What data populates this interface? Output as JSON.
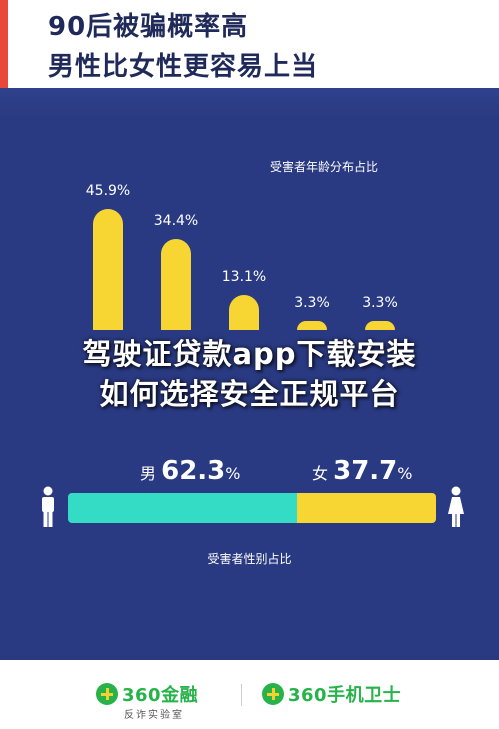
{
  "header": {
    "title_line1": "90后被骗概率高",
    "title_line2": "男性比女性更容易上当"
  },
  "overlay": {
    "line1": "驾驶证贷款app下载安装",
    "line2": "如何选择安全正规平台"
  },
  "chart_data": [
    {
      "type": "bar",
      "title": "受害者年龄分布占比",
      "categories": [
        "",
        "",
        "",
        "",
        ""
      ],
      "values": [
        45.9,
        34.4,
        13.1,
        3.3,
        3.3
      ],
      "value_labels": [
        "45.9%",
        "34.4%",
        "13.1%",
        "3.3%",
        "3.3%"
      ],
      "ylim": [
        0,
        50
      ],
      "grid": false,
      "colors": {
        "bar": "#f7d633"
      }
    },
    {
      "type": "bar",
      "orientation": "horizontal-stacked",
      "title": "受害者性别占比",
      "series": [
        {
          "name": "男",
          "value": 62.3,
          "label": "62.3",
          "color": "#34dcc6"
        },
        {
          "name": "女",
          "value": 37.7,
          "label": "37.7",
          "color": "#f7d633"
        }
      ],
      "unit": "%"
    }
  ],
  "footer": {
    "logo_left": "360金融",
    "logo_left_sub": "反诈实验室",
    "logo_right": "360手机卫士"
  },
  "icons": {
    "male": "male-person-icon",
    "female": "female-person-icon",
    "logo": "360-logo-icon"
  }
}
